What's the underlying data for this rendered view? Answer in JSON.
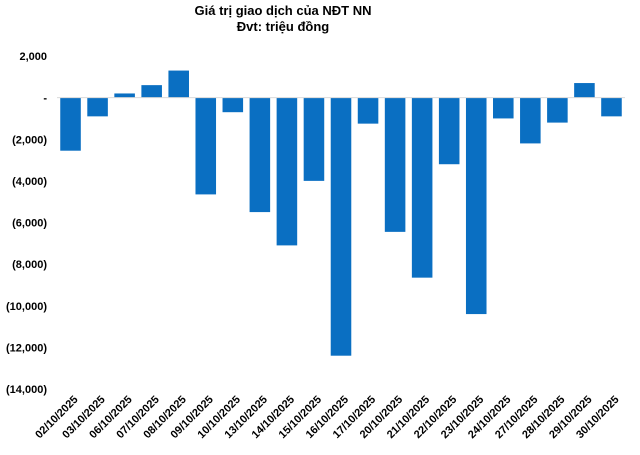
{
  "chart_data": {
    "type": "bar",
    "title": "Giá trị giao dịch của NĐT NN",
    "subtitle": "Đvt: triệu đồng",
    "xlabel": "",
    "ylabel": "",
    "ylim": [
      -14000,
      2000
    ],
    "ytick_values": [
      2000,
      0,
      -2000,
      -4000,
      -6000,
      -8000,
      -10000,
      -12000,
      -14000
    ],
    "ytick_labels": [
      "2,000",
      "-",
      "(2,000)",
      "(4,000)",
      "(6,000)",
      "(8,000)",
      "(10,000)",
      "(12,000)",
      "(14,000)"
    ],
    "grid": false,
    "legend": "none",
    "bar_color": "#0a6fc2",
    "categories": [
      "02/10/2025",
      "03/10/2025",
      "06/10/2025",
      "07/10/2025",
      "08/10/2025",
      "09/10/2025",
      "10/10/2025",
      "13/10/2025",
      "14/10/2025",
      "15/10/2025",
      "16/10/2025",
      "17/10/2025",
      "20/10/2025",
      "21/10/2025",
      "22/10/2025",
      "23/10/2025",
      "24/10/2025",
      "27/10/2025",
      "28/10/2025",
      "29/10/2025",
      "30/10/2025"
    ],
    "values": [
      -2550,
      -900,
      200,
      600,
      1300,
      -4650,
      -700,
      -5500,
      -7100,
      -4000,
      -12400,
      -1250,
      -6450,
      -8650,
      -3200,
      -10400,
      -1000,
      -2200,
      -1200,
      700,
      -900
    ]
  }
}
